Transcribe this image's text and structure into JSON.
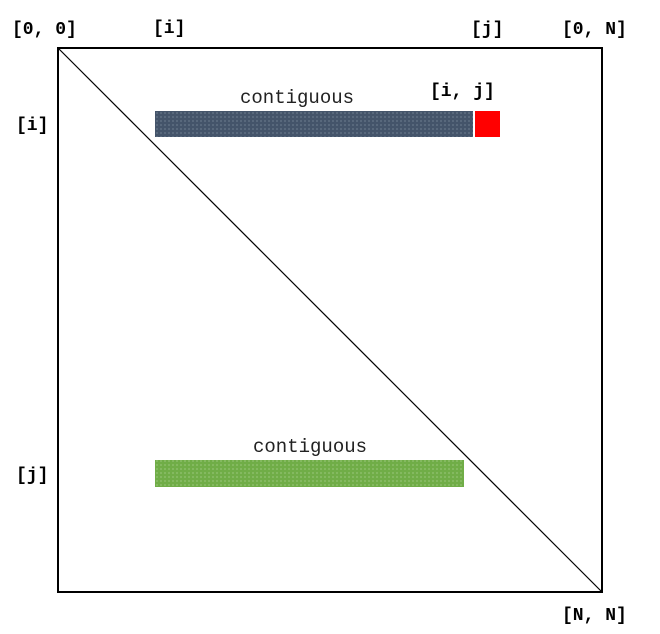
{
  "corners": {
    "top_left": "[0, 0]",
    "top_right": "[0, N]",
    "bottom_right": "[N, N]"
  },
  "axis_labels": {
    "top_i": "[i]",
    "top_j": "[j]",
    "left_i": "[i]",
    "left_j": "[j]"
  },
  "cell_label": "[i, j]",
  "row_block": {
    "label": "contiguous",
    "color": "#44546a"
  },
  "col_block": {
    "label": "contiguous",
    "color": "#70ad47"
  },
  "cell_color": "#ff0000"
}
